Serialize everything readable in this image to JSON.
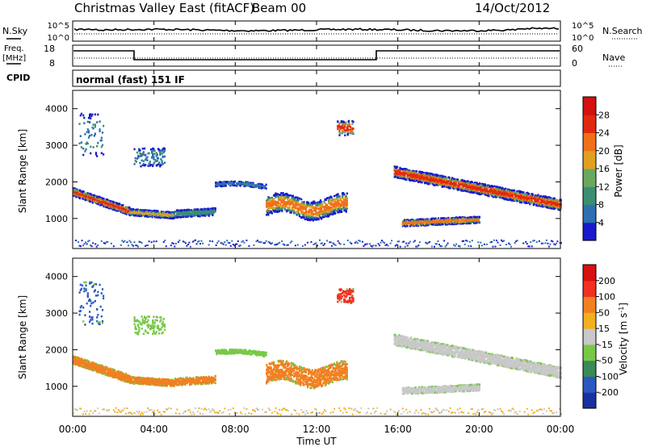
{
  "header": {
    "title": "Christmas Valley East (fitACF)",
    "beam": "Beam 00",
    "date": "14/Oct/2012"
  },
  "noise_panel": {
    "left_label": "N.Sky",
    "right_label": "N.Search",
    "ticks": [
      "10^5",
      "10^0"
    ]
  },
  "freq_panel": {
    "left_label_line1": "Freq.",
    "left_label_line2": "[MHz]",
    "left_ticks": [
      "18",
      "8"
    ],
    "right_label": "Nave",
    "right_ticks": [
      "60",
      "0"
    ]
  },
  "cpid_panel": {
    "label": "CPID",
    "text": "normal (fast) 151 IF"
  },
  "chart_data": [
    {
      "type": "heatmap",
      "name": "power",
      "ylabel": "Slant Range [km]",
      "yticks": [
        "1000",
        "2000",
        "3000",
        "4000"
      ],
      "ylim": [
        180,
        4500
      ],
      "colorbar": {
        "label": "Power [dB]",
        "ticks": [
          "4",
          "8",
          "12",
          "16",
          "20",
          "24",
          "28"
        ],
        "range": [
          0,
          32
        ],
        "colors": [
          "#1a1acc",
          "#2d6fb0",
          "#3b8e72",
          "#6aa860",
          "#e0a020",
          "#f07018",
          "#e02a10",
          "#d41010"
        ]
      }
    },
    {
      "type": "heatmap",
      "name": "velocity",
      "ylabel": "Slant Range [km]",
      "yticks": [
        "1000",
        "2000",
        "3000",
        "4000"
      ],
      "ylim": [
        180,
        4500
      ],
      "colorbar": {
        "label": "Velocity [m s^-1]",
        "ticks": [
          "200",
          "100",
          "50",
          "15",
          "-15",
          "-50",
          "-100",
          "-200"
        ],
        "colors": [
          "#1a30a0",
          "#2a58c0",
          "#3a8a58",
          "#78c848",
          "#c8c8c8",
          "#f0b020",
          "#f08020",
          "#f03020",
          "#d81010"
        ]
      }
    }
  ],
  "x_axis": {
    "label": "Time UT",
    "ticks": [
      "00:00",
      "04:00",
      "08:00",
      "12:00",
      "16:00",
      "20:00",
      "00:00"
    ]
  }
}
